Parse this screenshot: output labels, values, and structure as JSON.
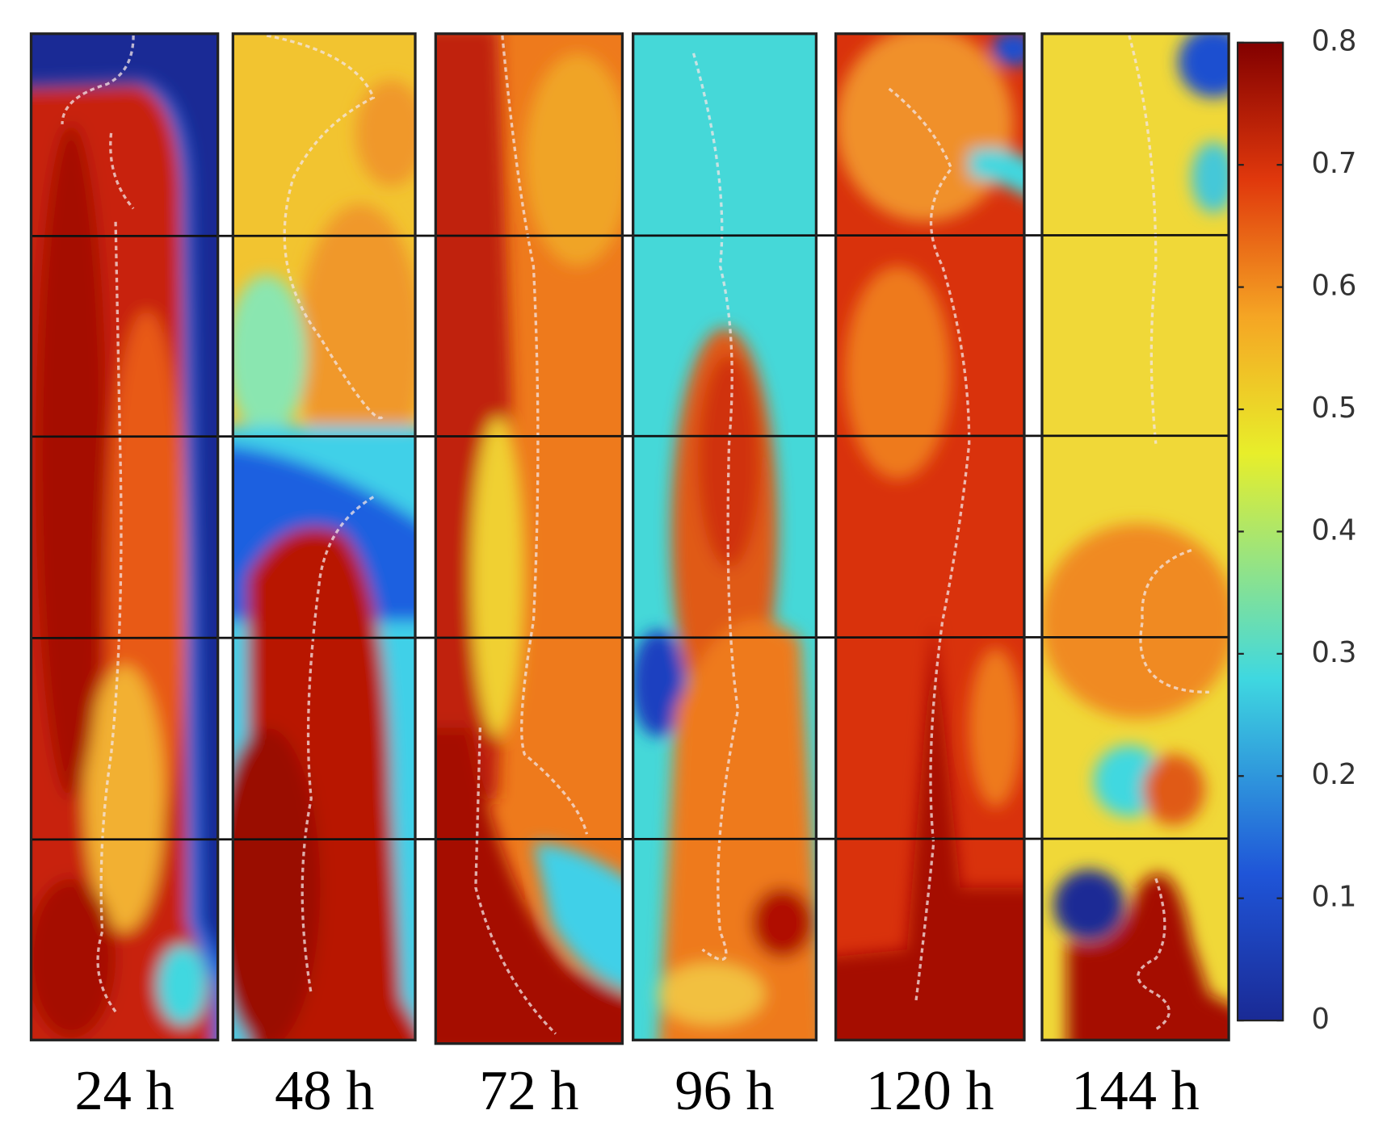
{
  "panels": [
    {
      "label": "24 h"
    },
    {
      "label": "48 h"
    },
    {
      "label": "72 h"
    },
    {
      "label": "96 h"
    },
    {
      "label": "120 h"
    },
    {
      "label": "144 h"
    }
  ],
  "colorbar": {
    "lim": [
      0,
      0.8
    ],
    "ticks": [
      0,
      0.1,
      0.2,
      0.3,
      0.4,
      0.5,
      0.6,
      0.7,
      0.8
    ]
  }
}
